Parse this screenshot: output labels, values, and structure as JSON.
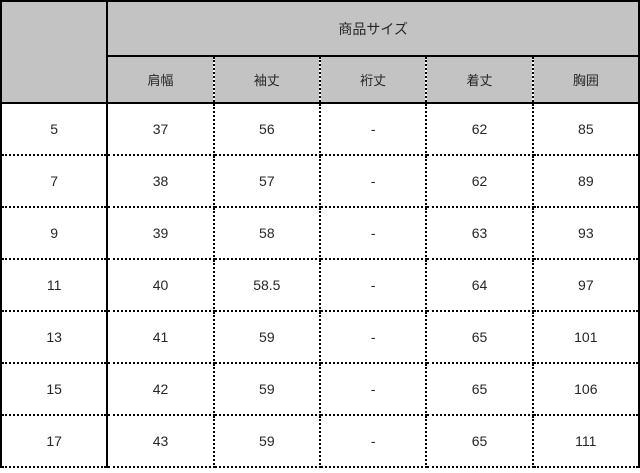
{
  "table": {
    "title": "商品サイズ",
    "corner_label": "",
    "columns": [
      "肩幅",
      "袖丈",
      "裄丈",
      "着丈",
      "胸囲"
    ],
    "rows": [
      {
        "size": "5",
        "values": [
          "37",
          "56",
          "-",
          "62",
          "85"
        ]
      },
      {
        "size": "7",
        "values": [
          "38",
          "57",
          "-",
          "62",
          "89"
        ]
      },
      {
        "size": "9",
        "values": [
          "39",
          "58",
          "-",
          "63",
          "93"
        ]
      },
      {
        "size": "11",
        "values": [
          "40",
          "58.5",
          "-",
          "64",
          "97"
        ]
      },
      {
        "size": "13",
        "values": [
          "41",
          "59",
          "-",
          "65",
          "101"
        ]
      },
      {
        "size": "15",
        "values": [
          "42",
          "59",
          "-",
          "65",
          "106"
        ]
      },
      {
        "size": "17",
        "values": [
          "43",
          "59",
          "-",
          "65",
          "111"
        ]
      }
    ],
    "colors": {
      "header_bg": "#c3c3c3",
      "body_bg": "#ffffff",
      "border": "#000000",
      "text": "#262626"
    }
  }
}
